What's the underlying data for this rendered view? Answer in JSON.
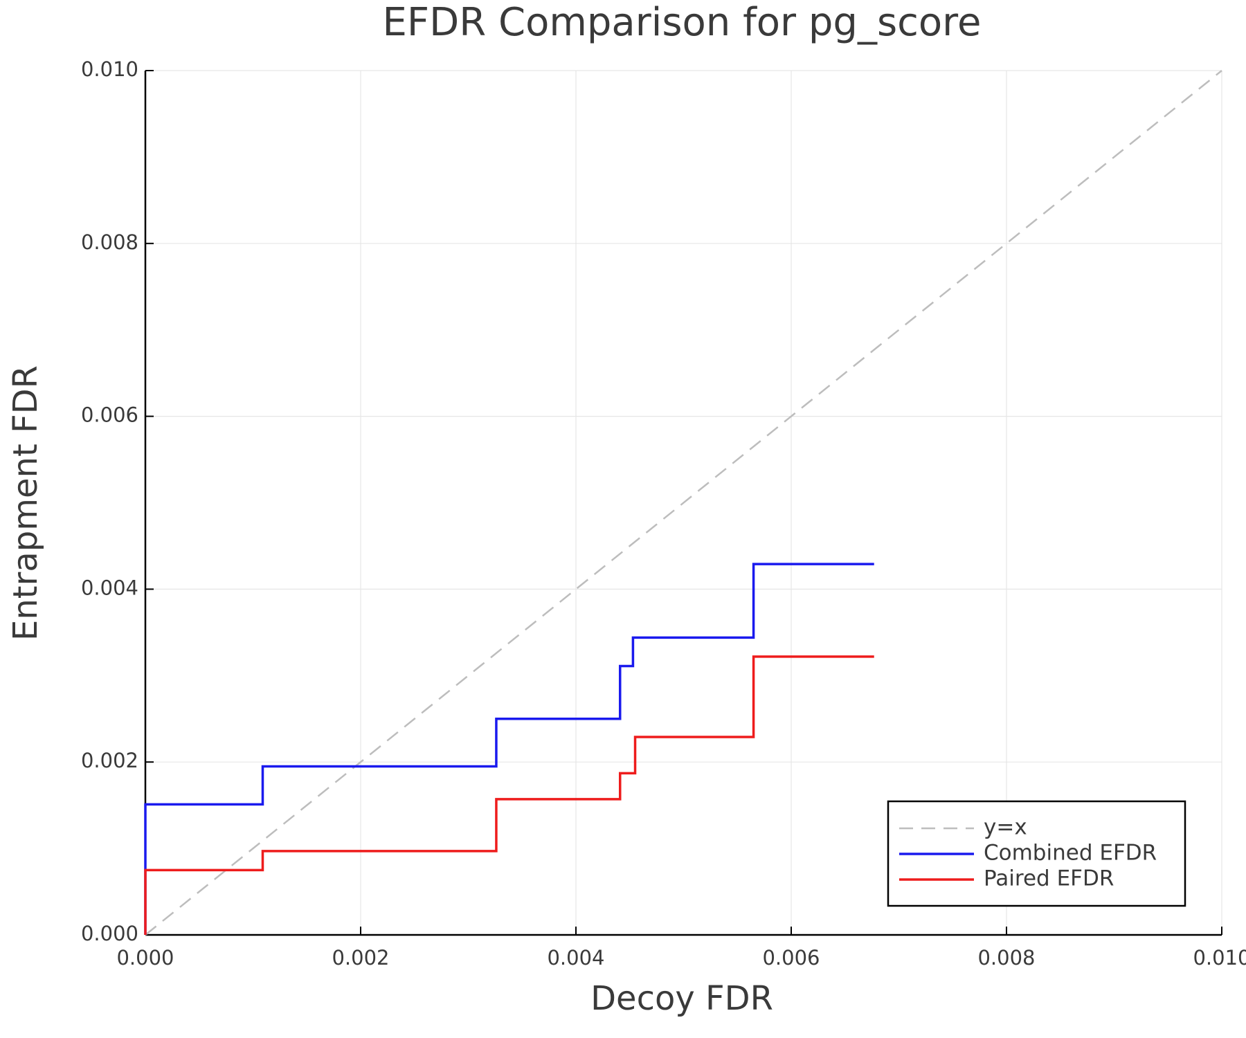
{
  "chart_data": {
    "type": "line",
    "step": "post",
    "title": "EFDR Comparison for pg_score",
    "xlabel": "Decoy FDR",
    "ylabel": "Entrapment FDR",
    "xlim": [
      0,
      0.01
    ],
    "ylim": [
      0,
      0.01
    ],
    "xticks": [
      {
        "value": 0,
        "label": "0.000"
      },
      {
        "value": 0.002,
        "label": "0.002"
      },
      {
        "value": 0.004,
        "label": "0.004"
      },
      {
        "value": 0.006,
        "label": "0.006"
      },
      {
        "value": 0.008,
        "label": "0.008"
      },
      {
        "value": 0.01,
        "label": "0.010"
      }
    ],
    "yticks": [
      {
        "value": 0,
        "label": "0.000"
      },
      {
        "value": 0.002,
        "label": "0.002"
      },
      {
        "value": 0.004,
        "label": "0.004"
      },
      {
        "value": 0.006,
        "label": "0.006"
      },
      {
        "value": 0.008,
        "label": "0.008"
      },
      {
        "value": 0.01,
        "label": "0.010"
      }
    ],
    "grid": true,
    "legend": "bottom-right",
    "series": [
      {
        "name": "y=x",
        "color": "#bdbdbd",
        "dashed": true,
        "x": [
          0,
          0.01
        ],
        "values": [
          0,
          0.01
        ]
      },
      {
        "name": "Combined EFDR",
        "color": "#1a1aee",
        "x": [
          0,
          0.00109,
          0.00326,
          0.00441,
          0.00453,
          0.00565,
          0.00677
        ],
        "values": [
          0.00151,
          0.00195,
          0.0025,
          0.00311,
          0.00344,
          0.00429,
          0.00429
        ]
      },
      {
        "name": "Paired EFDR",
        "color": "#ee1c1c",
        "x": [
          0,
          0.00109,
          0.00326,
          0.00441,
          0.00455,
          0.00565,
          0.00677
        ],
        "values": [
          0.00075,
          0.00097,
          0.00157,
          0.00187,
          0.00229,
          0.00322,
          0.00322
        ]
      }
    ]
  }
}
